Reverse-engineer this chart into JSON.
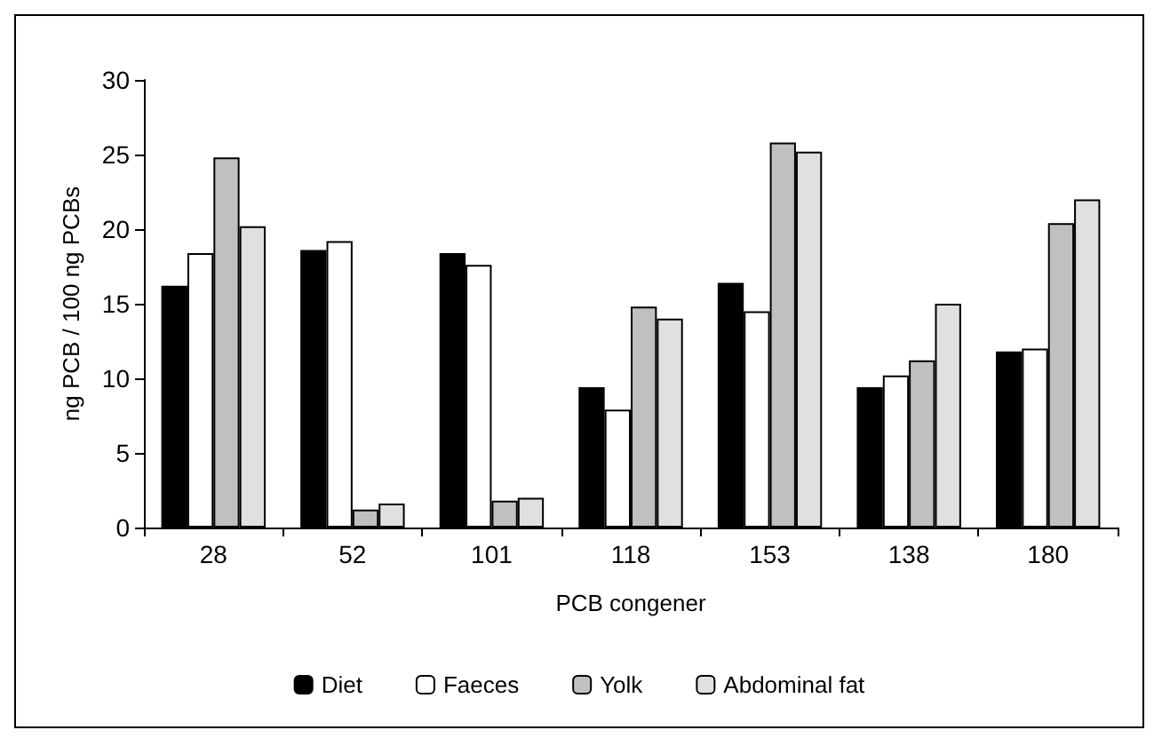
{
  "chart_data": {
    "type": "bar",
    "xlabel": "PCB congener",
    "ylabel": "ng PCB / 100 ng PCBs",
    "categories": [
      "28",
      "52",
      "101",
      "118",
      "153",
      "138",
      "180"
    ],
    "series": [
      {
        "name": "Diet",
        "color": "#000000",
        "values": [
          16.2,
          18.6,
          18.4,
          9.4,
          16.4,
          9.4,
          11.8
        ]
      },
      {
        "name": "Faeces",
        "color": "#ffffff",
        "values": [
          18.4,
          19.2,
          17.6,
          7.9,
          14.5,
          10.2,
          12.0
        ]
      },
      {
        "name": "Yolk",
        "color": "#c0c0c0",
        "values": [
          24.8,
          1.2,
          1.8,
          14.8,
          25.8,
          11.2,
          20.4
        ]
      },
      {
        "name": "Abdominal fat",
        "color": "#e0e0e0",
        "values": [
          20.2,
          1.6,
          2.0,
          14.0,
          25.2,
          15.0,
          22.0
        ]
      }
    ],
    "ylim": [
      0,
      30
    ],
    "yticks": [
      0,
      5,
      10,
      15,
      20,
      25,
      30
    ],
    "grid": false,
    "legend": "bottom"
  }
}
